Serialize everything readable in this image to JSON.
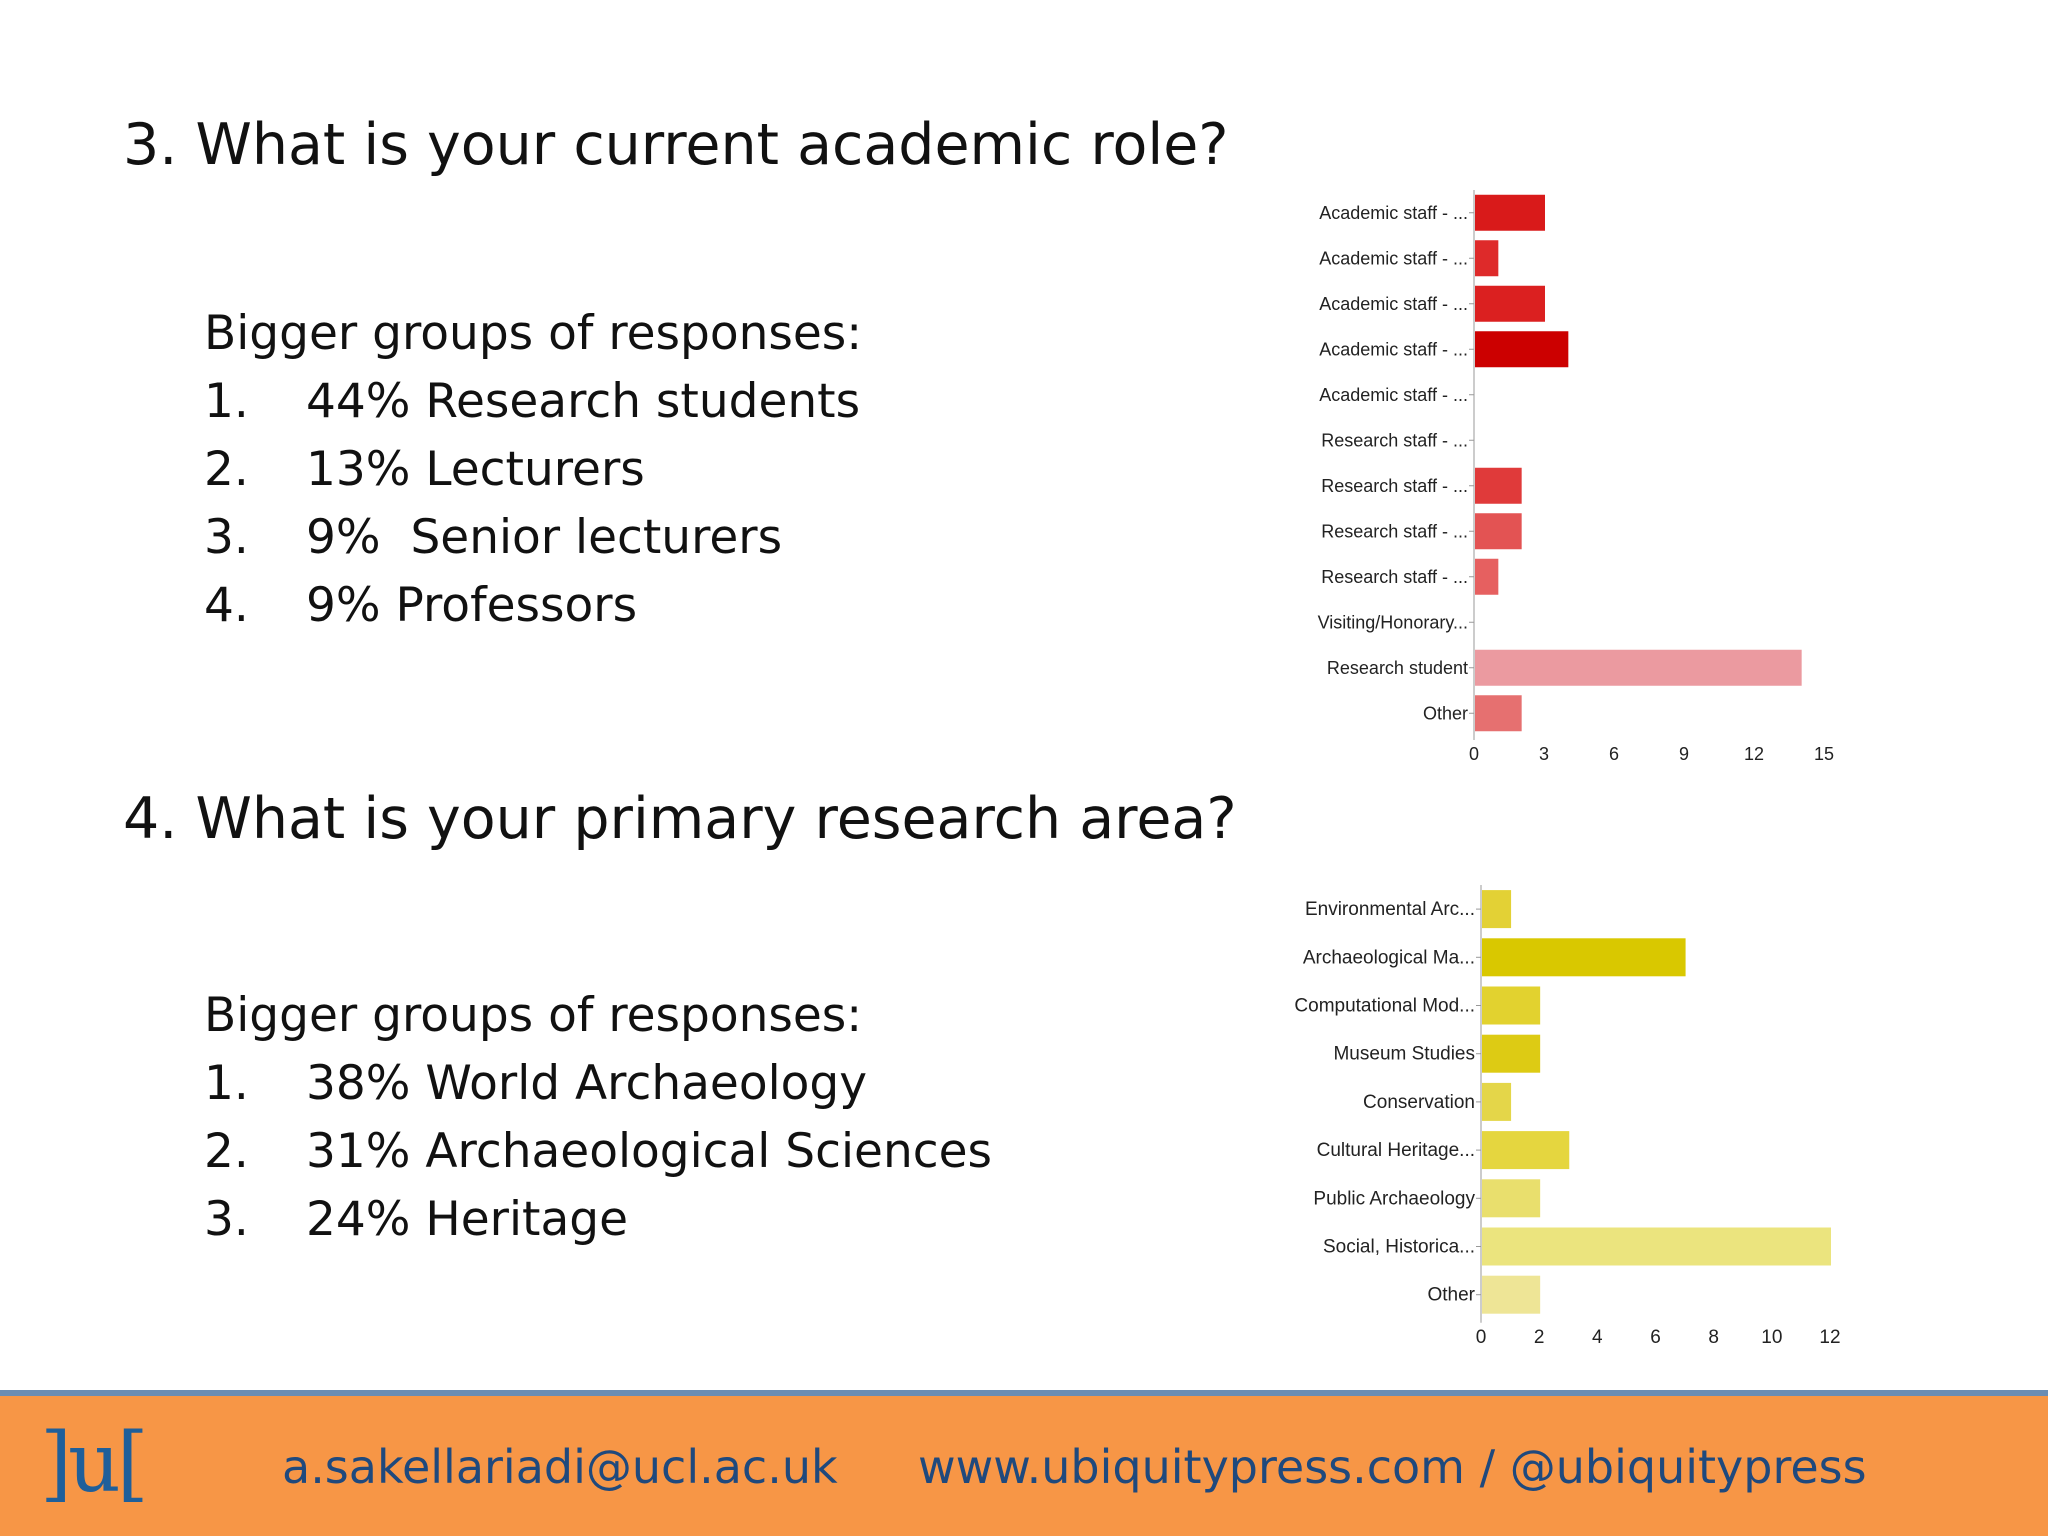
{
  "slide": {
    "q3": {
      "title": "3. What is your current academic role?",
      "groups_heading": "Bigger groups of responses:",
      "items": [
        {
          "num": "1.",
          "text": "44% Research students"
        },
        {
          "num": "2.",
          "text": "13% Lecturers"
        },
        {
          "num": "3.",
          "text": "9%  Senior lecturers"
        },
        {
          "num": "4.",
          "text": "9% Professors"
        }
      ]
    },
    "q4": {
      "title": "4. What is your primary research area?",
      "groups_heading": "Bigger groups of responses:",
      "items": [
        {
          "num": "1.",
          "text": "38% World Archaeology"
        },
        {
          "num": "2.",
          "text": "31% Archaeological Sciences"
        },
        {
          "num": "3.",
          "text": "24% Heritage"
        }
      ]
    },
    "footer": {
      "logo": "]u[",
      "email": "a.sakellariadi@ucl.ac.uk",
      "web": "www.ubiquitypress.com / @ubiquitypress"
    }
  },
  "chart_data": [
    {
      "type": "bar",
      "orientation": "horizontal",
      "categories": [
        "Academic staff - ...",
        "Academic staff - ...",
        "Academic staff - ...",
        "Academic staff - ...",
        "Academic staff - ...",
        "Research staff - ...",
        "Research staff - ...",
        "Research staff - ...",
        "Research staff - ...",
        "Visiting/Honorary...",
        "Research student",
        "Other"
      ],
      "values": [
        3,
        1,
        3,
        4,
        0,
        0,
        2,
        2,
        1,
        0,
        14,
        2
      ],
      "xticks": [
        0,
        3,
        6,
        9,
        12,
        15
      ],
      "xlim": [
        0,
        15
      ],
      "colors": [
        "#d91a1a",
        "#de2a2a",
        "#db2020",
        "#cc0000",
        "#cc0000",
        "#cc0000",
        "#e03a3a",
        "#e35353",
        "#e66060",
        "#e66060",
        "#eb9aa0",
        "#e67070"
      ]
    },
    {
      "type": "bar",
      "orientation": "horizontal",
      "categories": [
        "Environmental Arc...",
        "Archaeological Ma...",
        "Computational Mod...",
        "Museum Studies",
        "Conservation",
        "Cultural Heritage...",
        "Public Archaeology",
        "Social, Historica...",
        "Other"
      ],
      "values": [
        1,
        7,
        2,
        2,
        1,
        3,
        2,
        12,
        2
      ],
      "xticks": [
        0,
        2,
        4,
        6,
        8,
        10,
        12
      ],
      "xlim": [
        0,
        12
      ],
      "colors": [
        "#e3d135",
        "#d9c800",
        "#e2d22f",
        "#ddcb14",
        "#e4d649",
        "#e5d63f",
        "#e9df6d",
        "#ebe47e",
        "#eee596"
      ]
    }
  ]
}
